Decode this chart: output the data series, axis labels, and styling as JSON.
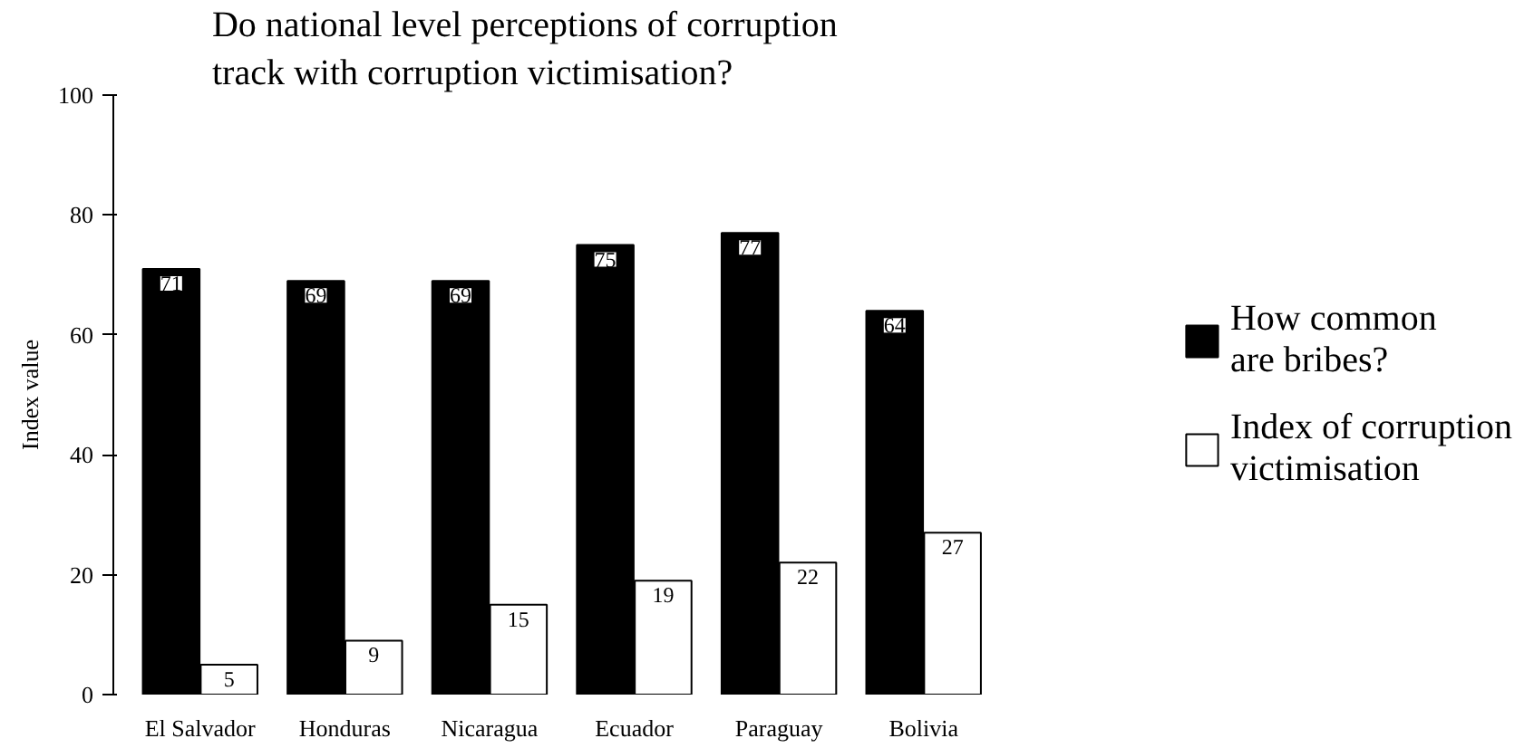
{
  "chart_data": {
    "type": "bar",
    "title": "Do national level perceptions of corruption\ntrack with corruption victimisation?",
    "ylabel": "Index value",
    "categories": [
      "El Salvador",
      "Honduras",
      "Nicaragua",
      "Ecuador",
      "Paraguay",
      "Bolivia"
    ],
    "series": [
      {
        "name": "How common\nare bribes?",
        "color": "#000000",
        "values": [
          71,
          69,
          69,
          75,
          77,
          64
        ]
      },
      {
        "name": "Index of corruption\nvictimisation",
        "color": "#ffffff",
        "values": [
          5,
          9,
          15,
          19,
          22,
          27
        ]
      }
    ],
    "ylim": [
      0,
      100
    ],
    "yticks": [
      0,
      20,
      40,
      60,
      80,
      100
    ],
    "grid": false,
    "legend": "right",
    "data_labels": true
  }
}
